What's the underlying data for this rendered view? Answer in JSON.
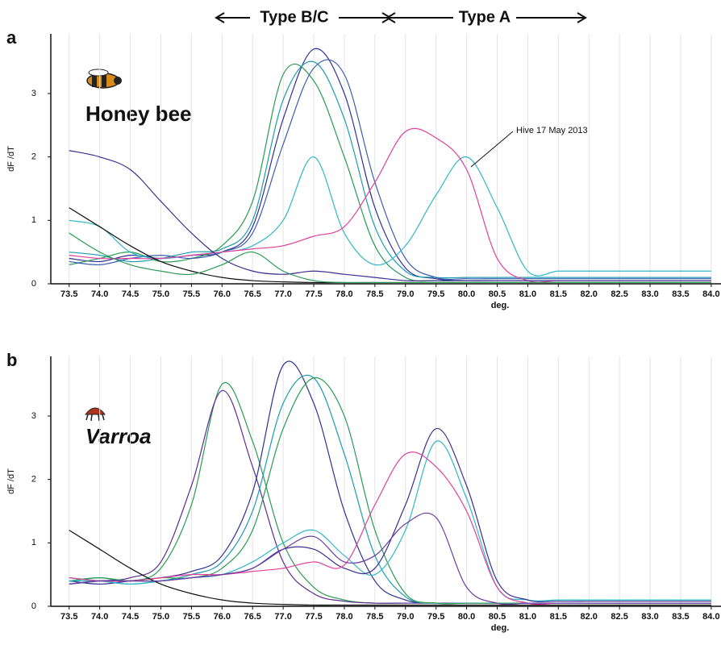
{
  "chart_data": [
    {
      "type": "line",
      "panel": "a",
      "region_labels": [
        "Type B/C",
        "Type A"
      ],
      "organism": "Honey bee",
      "annotation": "Hive 17 May 2013",
      "ylabel": "dF /dT",
      "xlabel": "deg.",
      "grid": "x",
      "xlim": [
        73.2,
        84.16
      ],
      "ylim": [
        0,
        3.94
      ],
      "xticks": [
        73.5,
        {
          "value": 74,
          "label": "74.0"
        },
        74.5,
        {
          "value": 75,
          "label": "75.0"
        },
        75.5,
        {
          "value": 76,
          "label": "76.0"
        },
        76.5,
        {
          "value": 77,
          "label": "77.0"
        },
        77.5,
        {
          "value": 78,
          "label": "78.0"
        },
        78.5,
        {
          "value": 79,
          "label": "79.0"
        },
        79.5,
        {
          "value": 80,
          "label": "80.0"
        },
        80.5,
        {
          "value": 81,
          "label": "81.0"
        },
        81.5,
        {
          "value": 82,
          "label": "82.0"
        },
        82.5,
        {
          "value": 83,
          "label": "83.0"
        },
        83.5,
        {
          "value": 84,
          "label": "84.0"
        }
      ],
      "yticks": [
        0,
        1,
        2,
        3
      ],
      "x": [
        73.5,
        74,
        74.5,
        75,
        75.5,
        76,
        76.5,
        77,
        77.5,
        78,
        78.5,
        79,
        79.5,
        80,
        80.5,
        81,
        81.5,
        82,
        82.5,
        83,
        83.5,
        84
      ],
      "series": [
        {
          "color": "#2e3192",
          "values": [
            0.4,
            0.35,
            0.45,
            0.4,
            0.45,
            0.5,
            0.9,
            2.6,
            3.7,
            3.0,
            1.2,
            0.25,
            0.08,
            0.05,
            0.05,
            0.05,
            0.05,
            0.05,
            0.05,
            0.05,
            0.05,
            0.05
          ]
        },
        {
          "color": "#1c9bb0",
          "values": [
            0.5,
            0.45,
            0.35,
            0.4,
            0.5,
            0.55,
            1.0,
            2.9,
            3.5,
            2.6,
            0.9,
            0.2,
            0.1,
            0.1,
            0.1,
            0.1,
            0.1,
            0.1,
            0.1,
            0.1,
            0.1,
            0.1
          ]
        },
        {
          "color": "#2a9a55",
          "values": [
            0.3,
            0.4,
            0.5,
            0.35,
            0.4,
            0.6,
            1.3,
            3.3,
            3.2,
            2.0,
            0.6,
            0.1,
            0.05,
            0.05,
            0.05,
            0.05,
            0.05,
            0.05,
            0.05,
            0.05,
            0.05,
            0.05
          ]
        },
        {
          "color": "#3a5fb0",
          "values": [
            0.35,
            0.3,
            0.4,
            0.45,
            0.4,
            0.5,
            0.8,
            2.2,
            3.4,
            3.3,
            1.6,
            0.4,
            0.1,
            0.08,
            0.08,
            0.08,
            0.08,
            0.08,
            0.08,
            0.08,
            0.08,
            0.08
          ]
        },
        {
          "color": "#30b8c8",
          "values": [
            1.0,
            0.9,
            0.5,
            0.4,
            0.45,
            0.5,
            0.6,
            1.0,
            2.0,
            0.8,
            0.3,
            0.6,
            1.4,
            2.0,
            1.2,
            0.2,
            0.2,
            0.2,
            0.2,
            0.2,
            0.2,
            0.2
          ]
        },
        {
          "color": "#e0409a",
          "values": [
            0.45,
            0.4,
            0.4,
            0.4,
            0.45,
            0.5,
            0.55,
            0.6,
            0.75,
            0.9,
            1.6,
            2.4,
            2.3,
            1.8,
            0.4,
            0.05,
            0.05,
            0.05,
            0.05,
            0.05,
            0.05,
            0.05
          ]
        },
        {
          "color": "#3b2f8f",
          "values": [
            2.1,
            2.0,
            1.8,
            1.3,
            0.8,
            0.4,
            0.2,
            0.15,
            0.2,
            0.15,
            0.1,
            0.05,
            0.05,
            0.05,
            0.05,
            0.05,
            0.05,
            0.05,
            0.05,
            0.05,
            0.05,
            0.05
          ]
        },
        {
          "color": "#111111",
          "values": [
            1.2,
            0.9,
            0.6,
            0.35,
            0.2,
            0.1,
            0.05,
            0.03,
            0.02,
            0.02,
            0.02,
            0.02,
            0.02,
            0.02,
            0.02,
            0.02,
            0.02,
            0.02,
            0.02,
            0.02,
            0.02,
            0.02
          ]
        },
        {
          "color": "#2a9a55",
          "values": [
            0.8,
            0.5,
            0.3,
            0.2,
            0.15,
            0.3,
            0.5,
            0.2,
            0.05,
            0.02,
            0.02,
            0.02,
            0.02,
            0.02,
            0.02,
            0.02,
            0.02,
            0.02,
            0.02,
            0.02,
            0.02,
            0.02
          ]
        }
      ]
    },
    {
      "type": "line",
      "panel": "b",
      "organism": "Varroa",
      "ylabel": "dF /dT",
      "xlabel": "deg.",
      "grid": "x",
      "xlim": [
        73.2,
        84.16
      ],
      "ylim": [
        0,
        3.94
      ],
      "xticks": [
        73.5,
        {
          "value": 74,
          "label": "74.0"
        },
        74.5,
        {
          "value": 75,
          "label": "75.0"
        },
        75.5,
        {
          "value": 76,
          "label": "76.0"
        },
        76.5,
        {
          "value": 77,
          "label": "77.0"
        },
        77.5,
        {
          "value": 78,
          "label": "78.0"
        },
        78.5,
        {
          "value": 79,
          "label": "79.0"
        },
        79.5,
        {
          "value": 80,
          "label": "80.0"
        },
        80.5,
        {
          "value": 81,
          "label": "81.0"
        },
        81.5,
        {
          "value": 82,
          "label": "82.0"
        },
        82.5,
        {
          "value": 83,
          "label": "83.0"
        },
        83.5,
        {
          "value": 84,
          "label": "84.0"
        }
      ],
      "yticks": [
        0,
        1,
        2,
        3
      ],
      "x": [
        73.5,
        74,
        74.5,
        75,
        75.5,
        76,
        76.5,
        77,
        77.5,
        78,
        78.5,
        79,
        79.5,
        80,
        80.5,
        81,
        81.5,
        82,
        82.5,
        83,
        83.5,
        84
      ],
      "series": [
        {
          "color": "#2a9a55",
          "values": [
            0.4,
            0.45,
            0.4,
            0.6,
            1.6,
            3.5,
            2.6,
            1.0,
            0.3,
            0.1,
            0.05,
            0.05,
            0.05,
            0.05,
            0.05,
            0.05,
            0.05,
            0.05,
            0.05,
            0.05,
            0.05,
            0.05
          ]
        },
        {
          "color": "#5b2d90",
          "values": [
            0.35,
            0.4,
            0.45,
            0.7,
            1.9,
            3.4,
            2.2,
            0.7,
            0.2,
            0.08,
            0.05,
            0.05,
            0.05,
            0.05,
            0.05,
            0.05,
            0.05,
            0.05,
            0.05,
            0.05,
            0.05,
            0.05
          ]
        },
        {
          "color": "#2e3192",
          "values": [
            0.4,
            0.35,
            0.4,
            0.45,
            0.55,
            0.8,
            1.8,
            3.8,
            3.2,
            1.5,
            0.4,
            0.1,
            0.05,
            0.05,
            0.05,
            0.05,
            0.05,
            0.05,
            0.05,
            0.05,
            0.05,
            0.05
          ]
        },
        {
          "color": "#1c9bb0",
          "values": [
            0.45,
            0.4,
            0.35,
            0.4,
            0.5,
            0.7,
            1.5,
            3.2,
            3.6,
            2.4,
            0.8,
            0.15,
            0.05,
            0.05,
            0.05,
            0.05,
            0.05,
            0.05,
            0.05,
            0.05,
            0.05,
            0.05
          ]
        },
        {
          "color": "#2a9a55",
          "values": [
            0.4,
            0.45,
            0.4,
            0.45,
            0.45,
            0.6,
            1.2,
            2.8,
            3.6,
            3.0,
            1.2,
            0.2,
            0.05,
            0.05,
            0.05,
            0.05,
            0.05,
            0.05,
            0.05,
            0.05,
            0.05,
            0.05
          ]
        },
        {
          "color": "#30b8c8",
          "values": [
            0.4,
            0.4,
            0.35,
            0.4,
            0.45,
            0.5,
            0.7,
            1.0,
            1.2,
            0.8,
            0.5,
            1.2,
            2.6,
            1.7,
            0.3,
            0.1,
            0.1,
            0.1,
            0.1,
            0.1,
            0.1,
            0.1
          ]
        },
        {
          "color": "#3b2f8f",
          "values": [
            0.35,
            0.4,
            0.4,
            0.4,
            0.45,
            0.5,
            0.6,
            0.9,
            0.9,
            0.6,
            0.6,
            1.6,
            2.8,
            1.9,
            0.4,
            0.1,
            0.08,
            0.08,
            0.08,
            0.08,
            0.08,
            0.08
          ]
        },
        {
          "color": "#e0409a",
          "values": [
            0.45,
            0.4,
            0.4,
            0.45,
            0.5,
            0.5,
            0.55,
            0.6,
            0.7,
            0.65,
            1.6,
            2.4,
            2.2,
            1.5,
            0.3,
            0.05,
            0.05,
            0.05,
            0.05,
            0.05,
            0.05,
            0.05
          ]
        },
        {
          "color": "#111111",
          "values": [
            1.2,
            0.9,
            0.6,
            0.35,
            0.2,
            0.1,
            0.05,
            0.03,
            0.02,
            0.02,
            0.02,
            0.02,
            0.02,
            0.02,
            0.02,
            0.02,
            0.02,
            0.02,
            0.02,
            0.02,
            0.02,
            0.02
          ]
        },
        {
          "color": "#6a3fa0",
          "values": [
            0.35,
            0.4,
            0.4,
            0.4,
            0.45,
            0.5,
            0.6,
            0.9,
            1.1,
            0.7,
            0.8,
            1.3,
            1.4,
            0.3,
            0.05,
            0.05,
            0.05,
            0.05,
            0.05,
            0.05,
            0.05,
            0.05
          ]
        }
      ]
    }
  ]
}
